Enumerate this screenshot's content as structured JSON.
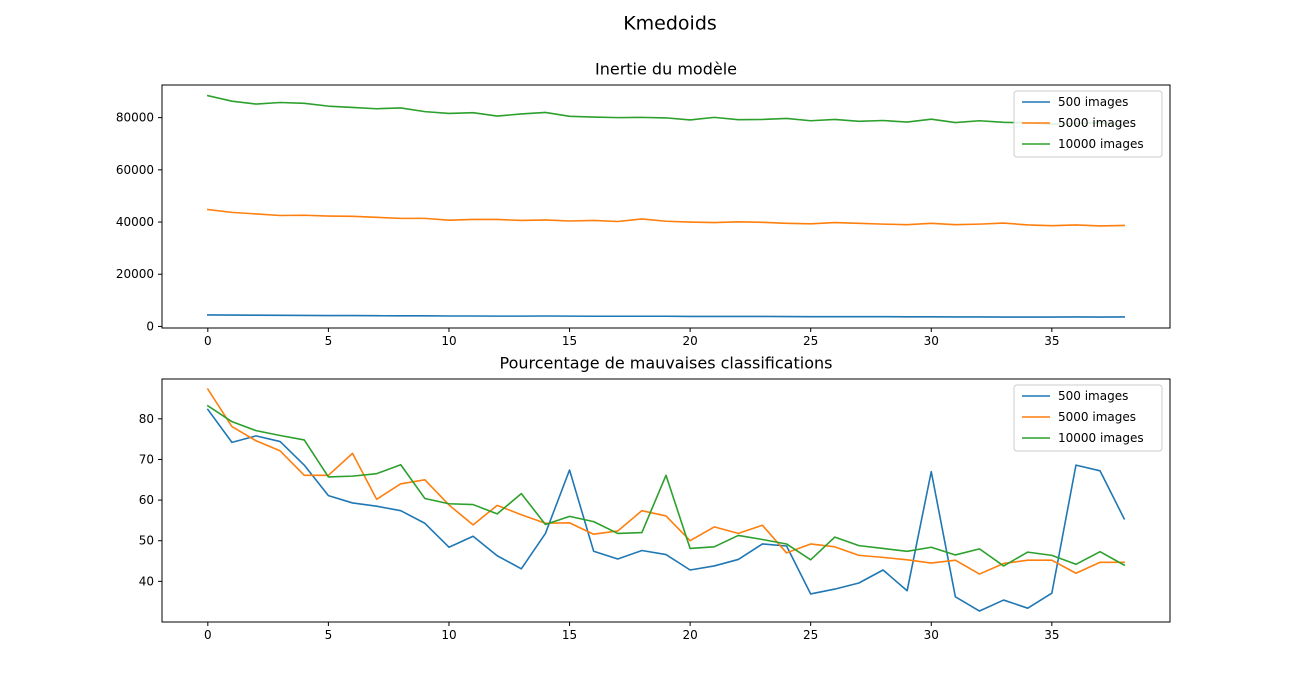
{
  "figure": {
    "suptitle": "Kmedoids"
  },
  "colors": {
    "s500": "#1f77b4",
    "s5000": "#ff7f0e",
    "s10000": "#2ca02c"
  },
  "chart_data": [
    {
      "type": "line",
      "title": "Inertie du modèle",
      "xlabel": "",
      "ylabel": "",
      "xlim": [
        -1.9,
        39.9
      ],
      "ylim": [
        -600,
        92500
      ],
      "xticks": [
        0,
        5,
        10,
        15,
        20,
        25,
        30,
        35
      ],
      "yticks": [
        0,
        20000,
        40000,
        60000,
        80000
      ],
      "legend_position": "top-right",
      "grid": false,
      "x": [
        0,
        1,
        2,
        3,
        4,
        5,
        6,
        7,
        8,
        9,
        10,
        11,
        12,
        13,
        14,
        15,
        16,
        17,
        18,
        19,
        20,
        21,
        22,
        23,
        24,
        25,
        26,
        27,
        28,
        29,
        30,
        31,
        32,
        33,
        34,
        35,
        36,
        37,
        38
      ],
      "series": [
        {
          "name": "500 images",
          "color": "#1f77b4",
          "values": [
            4400,
            4350,
            4300,
            4250,
            4200,
            4150,
            4150,
            4100,
            4050,
            4050,
            4000,
            4000,
            3950,
            3950,
            4000,
            3950,
            3900,
            3900,
            3900,
            3900,
            3850,
            3850,
            3850,
            3850,
            3800,
            3750,
            3750,
            3750,
            3750,
            3700,
            3700,
            3650,
            3650,
            3600,
            3600,
            3600,
            3650,
            3600,
            3650
          ]
        },
        {
          "name": "5000 images",
          "color": "#ff7f0e",
          "values": [
            44800,
            43700,
            43100,
            42500,
            42600,
            42300,
            42200,
            41800,
            41400,
            41400,
            40700,
            41000,
            41000,
            40600,
            40800,
            40400,
            40600,
            40200,
            41200,
            40300,
            40000,
            39800,
            40100,
            39900,
            39500,
            39300,
            39800,
            39500,
            39200,
            39000,
            39500,
            39000,
            39200,
            39600,
            38900,
            38600,
            38900,
            38500,
            38700
          ]
        },
        {
          "name": "10000 images",
          "color": "#2ca02c",
          "values": [
            88400,
            86300,
            85200,
            85800,
            85500,
            84400,
            83900,
            83400,
            83700,
            82300,
            81600,
            81900,
            80600,
            81400,
            82000,
            80500,
            80200,
            80000,
            80100,
            79900,
            79100,
            80100,
            79200,
            79300,
            79700,
            78800,
            79300,
            78600,
            78900,
            78300,
            79400,
            78100,
            78800,
            78200,
            78000,
            77500,
            77800,
            78000,
            77200
          ]
        }
      ]
    },
    {
      "type": "line",
      "title": "Pourcentage de mauvaises classifications",
      "xlabel": "",
      "ylabel": "",
      "xlim": [
        -1.9,
        39.9
      ],
      "ylim": [
        30.0,
        89.8
      ],
      "xticks": [
        0,
        5,
        10,
        15,
        20,
        25,
        30,
        35
      ],
      "yticks": [
        40,
        50,
        60,
        70,
        80
      ],
      "legend_position": "top-right",
      "grid": false,
      "x": [
        0,
        1,
        2,
        3,
        4,
        5,
        6,
        7,
        8,
        9,
        10,
        11,
        12,
        13,
        14,
        15,
        16,
        17,
        18,
        19,
        20,
        21,
        22,
        23,
        24,
        25,
        26,
        27,
        28,
        29,
        30,
        31,
        32,
        33,
        34,
        35,
        36,
        37,
        38
      ],
      "series": [
        {
          "name": "500 images",
          "color": "#1f77b4",
          "values": [
            82.3,
            74.2,
            75.8,
            74.4,
            68.6,
            61.1,
            59.3,
            58.5,
            57.4,
            54.3,
            48.4,
            51.1,
            46.3,
            43.1,
            51.8,
            67.4,
            47.4,
            45.5,
            47.6,
            46.6,
            42.8,
            43.8,
            45.4,
            49.2,
            48.7,
            36.9,
            38.1,
            39.6,
            42.8,
            37.7,
            67.0,
            36.2,
            32.7,
            35.4,
            33.4,
            37.1,
            68.6,
            67.2,
            55.4
          ]
        },
        {
          "name": "5000 images",
          "color": "#ff7f0e",
          "values": [
            87.3,
            78.1,
            74.6,
            72.1,
            66.1,
            66.1,
            71.5,
            60.2,
            64.0,
            65.0,
            58.8,
            53.9,
            58.7,
            56.4,
            54.3,
            54.4,
            51.6,
            52.4,
            57.4,
            56.1,
            50.0,
            53.4,
            51.8,
            53.8,
            47.0,
            49.2,
            48.5,
            46.4,
            45.9,
            45.3,
            44.5,
            45.2,
            41.8,
            44.4,
            45.2,
            45.2,
            42.0,
            44.7,
            44.7
          ]
        },
        {
          "name": "10000 images",
          "color": "#2ca02c",
          "values": [
            83.2,
            79.3,
            77.1,
            75.9,
            74.8,
            65.7,
            65.9,
            66.5,
            68.7,
            60.4,
            59.1,
            58.9,
            56.6,
            61.6,
            54.0,
            56.0,
            54.7,
            51.8,
            52.0,
            66.1,
            48.1,
            48.5,
            51.3,
            50.3,
            49.2,
            45.3,
            50.9,
            48.8,
            48.1,
            47.4,
            48.4,
            46.5,
            48.0,
            43.8,
            47.2,
            46.4,
            44.2,
            47.3,
            44.0
          ]
        }
      ]
    }
  ]
}
